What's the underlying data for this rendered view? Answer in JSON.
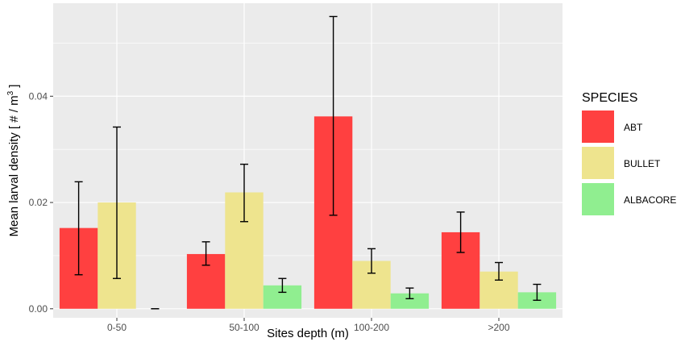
{
  "chart_data": {
    "type": "bar",
    "categories": [
      "0-50",
      "50-100",
      "100-200",
      ">200"
    ],
    "series": [
      {
        "name": "ABT",
        "color": "#ff4040",
        "values": [
          0.0152,
          0.0103,
          0.0362,
          0.0144
        ],
        "err_low": [
          0.0064,
          0.0082,
          0.0176,
          0.0106
        ],
        "err_high": [
          0.0239,
          0.0126,
          0.055,
          0.0182
        ]
      },
      {
        "name": "BULLET",
        "color": "#eee48e",
        "values": [
          0.02,
          0.0219,
          0.009,
          0.007
        ],
        "err_low": [
          0.0057,
          0.0164,
          0.0067,
          0.0054
        ],
        "err_high": [
          0.0342,
          0.0272,
          0.0113,
          0.0087
        ]
      },
      {
        "name": "ALBACORE",
        "color": "#90ee90",
        "values": [
          0.0,
          0.0044,
          0.0029,
          0.0031
        ],
        "err_low": [
          0.0,
          0.0031,
          0.0019,
          0.0016
        ],
        "err_high": [
          0.0,
          0.0057,
          0.0039,
          0.0046
        ]
      }
    ],
    "yticks": [
      0.0,
      0.02,
      0.04
    ],
    "ytick_labels": [
      "0.00",
      "0.02",
      "0.04"
    ],
    "ylim": [
      -0.0017,
      0.0575
    ],
    "xlabel": "Sites depth (m)",
    "ylabel_main": "Mean larval density [ # / m",
    "ylabel_sup": "3",
    "ylabel_end": " ]",
    "legend_title": "SPECIES",
    "legend_position": "right",
    "grid": true,
    "panel_color": "#ebebeb"
  }
}
